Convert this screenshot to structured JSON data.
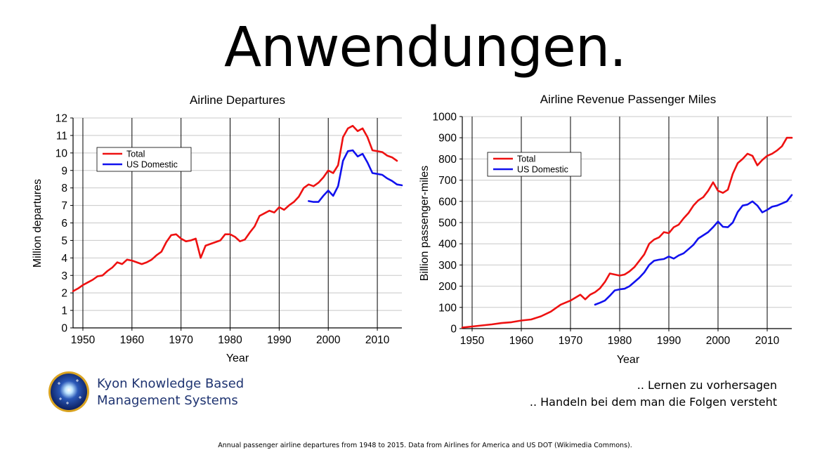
{
  "slide": {
    "title": "Anwendungen.",
    "logo_line1": "Kyon Knowledge Based",
    "logo_line2": "Management Systems",
    "logo_icon": "star-globe-icon",
    "note_line1": ".. Lernen zu vorhersagen",
    "note_line2": ".. Handeln bei dem man die Folgen versteht",
    "caption": "Annual passenger airline departures from 1948 to 2015. Data from Airlines for America and US DOT (Wikimedia Commons)."
  },
  "chart_data": [
    {
      "type": "line",
      "title": "Airline Departures",
      "xlabel": "Year",
      "ylabel": "Million departures",
      "xlim": [
        1948,
        2015
      ],
      "ylim": [
        0,
        12
      ],
      "xticks": [
        1950,
        1960,
        1970,
        1980,
        1990,
        2000,
        2010
      ],
      "yticks": [
        0,
        1,
        2,
        3,
        4,
        5,
        6,
        7,
        8,
        9,
        10,
        11,
        12
      ],
      "grid": "vertical",
      "legend_position": "upper-left",
      "series": [
        {
          "name": "Total",
          "color": "#ee1111",
          "x": [
            1948,
            1949,
            1950,
            1951,
            1952,
            1953,
            1954,
            1955,
            1956,
            1957,
            1958,
            1959,
            1960,
            1961,
            1962,
            1963,
            1964,
            1965,
            1966,
            1967,
            1968,
            1969,
            1970,
            1971,
            1972,
            1973,
            1974,
            1975,
            1976,
            1977,
            1978,
            1979,
            1980,
            1981,
            1982,
            1983,
            1984,
            1985,
            1986,
            1987,
            1988,
            1989,
            1990,
            1991,
            1992,
            1993,
            1994,
            1995,
            1996,
            1997,
            1998,
            1999,
            2000,
            2001,
            2002,
            2003,
            2004,
            2005,
            2006,
            2007,
            2008,
            2009,
            2010,
            2011,
            2012,
            2013,
            2014
          ],
          "y": [
            2.1,
            2.25,
            2.45,
            2.6,
            2.75,
            2.95,
            3.0,
            3.25,
            3.45,
            3.75,
            3.65,
            3.9,
            3.85,
            3.75,
            3.65,
            3.75,
            3.9,
            4.15,
            4.35,
            4.9,
            5.3,
            5.35,
            5.1,
            4.95,
            5.0,
            5.1,
            4.0,
            4.7,
            4.8,
            4.9,
            5.0,
            5.35,
            5.35,
            5.2,
            4.95,
            5.05,
            5.45,
            5.8,
            6.4,
            6.55,
            6.7,
            6.6,
            6.9,
            6.75,
            7.0,
            7.2,
            7.5,
            8.0,
            8.2,
            8.1,
            8.3,
            8.6,
            9.0,
            8.85,
            9.3,
            10.9,
            11.4,
            11.55,
            11.25,
            11.4,
            10.9,
            10.15,
            10.1,
            10.05,
            9.85,
            9.75,
            9.55
          ]
        },
        {
          "name": "US Domestic",
          "color": "#1111ee",
          "x": [
            1996,
            1997,
            1998,
            1999,
            2000,
            2001,
            2002,
            2003,
            2004,
            2005,
            2006,
            2007,
            2008,
            2009,
            2010,
            2011,
            2012,
            2013,
            2014,
            2015
          ],
          "y": [
            7.25,
            7.2,
            7.2,
            7.55,
            7.85,
            7.55,
            8.1,
            9.55,
            10.1,
            10.15,
            9.8,
            9.95,
            9.45,
            8.85,
            8.8,
            8.75,
            8.55,
            8.4,
            8.2,
            8.15
          ]
        }
      ]
    },
    {
      "type": "line",
      "title": "Airline Revenue Passenger Miles",
      "xlabel": "Year",
      "ylabel": "Billion passenger-miles",
      "xlim": [
        1948,
        2015
      ],
      "ylim": [
        0,
        1000
      ],
      "xticks": [
        1950,
        1960,
        1970,
        1980,
        1990,
        2000,
        2010
      ],
      "yticks": [
        0,
        100,
        200,
        300,
        400,
        500,
        600,
        700,
        800,
        900,
        1000
      ],
      "grid": "vertical",
      "legend_position": "upper-left",
      "series": [
        {
          "name": "Total",
          "color": "#ee1111",
          "x": [
            1948,
            1950,
            1952,
            1954,
            1956,
            1958,
            1960,
            1962,
            1964,
            1966,
            1968,
            1970,
            1972,
            1973,
            1974,
            1975,
            1976,
            1977,
            1978,
            1979,
            1980,
            1981,
            1982,
            1983,
            1984,
            1985,
            1986,
            1987,
            1988,
            1989,
            1990,
            1991,
            1992,
            1993,
            1994,
            1995,
            1996,
            1997,
            1998,
            1999,
            2000,
            2001,
            2002,
            2003,
            2004,
            2005,
            2006,
            2007,
            2008,
            2009,
            2010,
            2011,
            2012,
            2013,
            2014,
            2015
          ],
          "y": [
            5,
            10,
            15,
            20,
            26,
            30,
            38,
            43,
            58,
            80,
            113,
            132,
            160,
            138,
            160,
            172,
            190,
            220,
            260,
            255,
            250,
            255,
            270,
            290,
            320,
            350,
            400,
            420,
            430,
            455,
            450,
            478,
            490,
            520,
            545,
            580,
            605,
            620,
            650,
            690,
            650,
            640,
            655,
            730,
            780,
            800,
            825,
            815,
            770,
            795,
            815,
            825,
            840,
            860,
            900,
            900
          ]
        },
        {
          "name": "US Domestic",
          "color": "#1111ee",
          "x": [
            1975,
            1976,
            1977,
            1978,
            1979,
            1980,
            1981,
            1982,
            1983,
            1984,
            1985,
            1986,
            1987,
            1988,
            1989,
            1990,
            1991,
            1992,
            1993,
            1994,
            1995,
            1996,
            1997,
            1998,
            1999,
            2000,
            2001,
            2002,
            2003,
            2004,
            2005,
            2006,
            2007,
            2008,
            2009,
            2010,
            2011,
            2012,
            2013,
            2014,
            2015
          ],
          "y": [
            113,
            122,
            132,
            155,
            180,
            185,
            188,
            200,
            220,
            240,
            265,
            300,
            320,
            325,
            328,
            340,
            330,
            345,
            355,
            375,
            395,
            425,
            440,
            455,
            478,
            505,
            480,
            478,
            500,
            550,
            580,
            585,
            600,
            580,
            548,
            560,
            575,
            580,
            590,
            600,
            630
          ]
        }
      ]
    }
  ]
}
